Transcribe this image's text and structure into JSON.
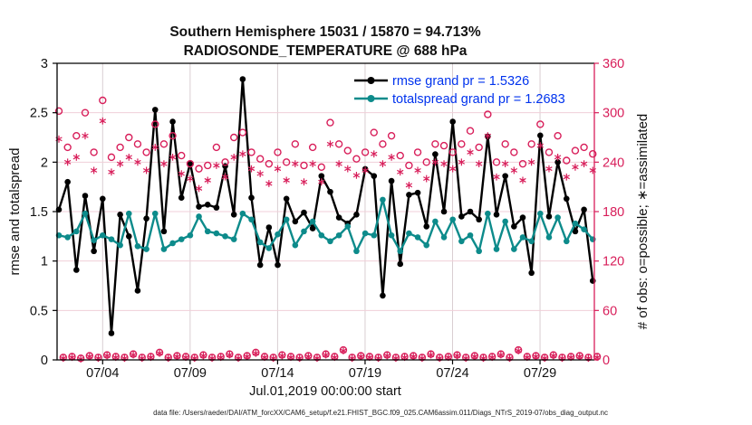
{
  "title": {
    "line1": "Southern Hemisphere 15031 / 15870 = 94.713%",
    "line2": "RADIOSONDE_TEMPERATURE @ 688 hPa"
  },
  "colors": {
    "obs_red": "#d81e5a",
    "rmse_black": "#000000",
    "spread_teal": "#0d8b8b",
    "legend_text_blue": "#0033ee",
    "grid_horizontal": "#f0cfd8",
    "grid_vertical": "#d9ced2",
    "axis_left": "#000000",
    "axis_right": "#d81e5a"
  },
  "chart_data": {
    "type": "line",
    "title": "Southern Hemisphere 15031 / 15870 = 94.713%",
    "subtitle": "RADIOSONDE_TEMPERATURE @ 688 hPa",
    "xlabel": "Jul.01,2019 00:00:00 start",
    "ylabel_left": "rmse and totalspread",
    "ylabel_right": "# of obs: o=possible; ∗=assimilated",
    "ylim_left": [
      0,
      3
    ],
    "yticks_left": [
      "0",
      "0.5",
      "1",
      "1.5",
      "2",
      "2.5",
      "3"
    ],
    "ylim_right": [
      0,
      360
    ],
    "yticks_right": [
      "0",
      "60",
      "120",
      "180",
      "240",
      "300",
      "360"
    ],
    "x_tick_labels": [
      "07/04",
      "07/09",
      "07/14",
      "07/19",
      "07/24",
      "07/29"
    ],
    "time_axis_note": "62 bins every 12 h, 2019-07-01 12:00Z through 2019-08-01 00:00Z; small off-hour bins fall between them",
    "grid": true,
    "legend_position": "upper-right-inside, no box",
    "legend": [
      {
        "label": "rmse grand pr = 1.5326",
        "color": "#000000"
      },
      {
        "label": "totalspread grand pr = 1.2683",
        "color": "#0d8b8b"
      }
    ],
    "series": [
      {
        "name": "rmse",
        "axis": "left",
        "style": "line-dot",
        "color": "#000000",
        "values": [
          1.52,
          1.8,
          0.91,
          1.66,
          1.1,
          1.63,
          0.27,
          1.47,
          1.25,
          0.7,
          1.43,
          2.53,
          1.3,
          2.41,
          1.64,
          1.99,
          1.55,
          1.57,
          1.54,
          1.96,
          1.47,
          2.84,
          1.64,
          0.96,
          1.34,
          0.96,
          1.63,
          1.4,
          1.49,
          1.33,
          1.86,
          1.7,
          1.44,
          1.38,
          1.47,
          1.93,
          1.86,
          0.65,
          1.81,
          0.97,
          1.67,
          1.69,
          1.35,
          2.08,
          1.5,
          2.41,
          1.45,
          1.5,
          1.42,
          2.26,
          1.47,
          1.86,
          1.35,
          1.44,
          0.88,
          2.27,
          1.45,
          2.0,
          1.63,
          1.3,
          1.52,
          0.8
        ]
      },
      {
        "name": "totalspread",
        "axis": "left",
        "style": "line-dot",
        "color": "#0d8b8b",
        "values": [
          1.26,
          1.24,
          1.3,
          1.48,
          1.21,
          1.26,
          1.22,
          1.16,
          1.48,
          1.15,
          1.12,
          1.48,
          1.12,
          1.18,
          1.22,
          1.26,
          1.45,
          1.3,
          1.28,
          1.25,
          1.22,
          1.48,
          1.42,
          1.19,
          1.13,
          1.27,
          1.42,
          1.16,
          1.3,
          1.4,
          1.26,
          1.2,
          1.26,
          1.35,
          1.1,
          1.28,
          1.26,
          1.62,
          1.26,
          1.1,
          1.28,
          1.24,
          1.16,
          1.4,
          1.24,
          1.42,
          1.2,
          1.26,
          1.1,
          1.48,
          1.12,
          1.4,
          1.12,
          1.24,
          1.2,
          1.48,
          1.24,
          1.44,
          1.2,
          1.38,
          1.32,
          1.22
        ]
      },
      {
        "name": "obs-possible",
        "axis": "right",
        "style": "open-circle",
        "color": "#d81e5a",
        "offset": 0,
        "values": [
          302,
          258,
          272,
          300,
          252,
          315,
          246,
          258,
          270,
          262,
          252,
          286,
          262,
          272,
          248,
          238,
          232,
          236,
          258,
          240,
          270,
          276,
          252,
          244,
          238,
          252,
          240,
          262,
          236,
          258,
          234,
          288,
          262,
          254,
          244,
          252,
          276,
          262,
          272,
          248,
          236,
          252,
          240,
          262,
          260,
          252,
          262,
          278,
          258,
          298,
          240,
          262,
          252,
          238,
          262,
          286,
          252,
          272,
          242,
          254,
          258,
          250
        ]
      },
      {
        "name": "obs-assimilated",
        "axis": "right",
        "style": "asterisk",
        "color": "#d81e5a",
        "offset": 0,
        "values": [
          268,
          240,
          246,
          272,
          230,
          290,
          228,
          238,
          246,
          240,
          230,
          258,
          238,
          246,
          226,
          220,
          208,
          218,
          236,
          222,
          246,
          250,
          232,
          226,
          214,
          232,
          218,
          238,
          216,
          238,
          216,
          262,
          238,
          232,
          224,
          230,
          250,
          238,
          246,
          228,
          212,
          230,
          220,
          240,
          238,
          232,
          240,
          252,
          238,
          272,
          222,
          238,
          230,
          218,
          240,
          260,
          232,
          246,
          222,
          234,
          238,
          230
        ]
      },
      {
        "name": "obs-possible-offhours",
        "axis": "right",
        "style": "open-circle",
        "color": "#d81e5a",
        "offset": 0.5,
        "values": [
          3,
          4,
          2,
          5,
          3,
          6,
          4,
          3,
          7,
          3,
          4,
          9,
          3,
          5,
          4,
          3,
          6,
          3,
          4,
          7,
          3,
          5,
          9,
          4,
          3,
          6,
          4,
          3,
          5,
          3,
          7,
          4,
          12,
          3,
          5,
          4,
          3,
          6,
          3,
          4,
          5,
          3,
          7,
          3,
          4,
          6,
          3,
          5,
          3,
          4,
          7,
          3,
          12,
          4,
          5,
          3,
          6,
          3,
          4,
          5,
          3,
          4
        ]
      },
      {
        "name": "obs-assimilated-offhours",
        "axis": "right",
        "style": "asterisk",
        "color": "#d81e5a",
        "offset": 0.5,
        "values": [
          2,
          3,
          1,
          4,
          2,
          5,
          3,
          2,
          6,
          2,
          3,
          8,
          2,
          4,
          3,
          2,
          5,
          2,
          3,
          6,
          2,
          4,
          8,
          3,
          2,
          5,
          3,
          2,
          4,
          2,
          6,
          3,
          11,
          2,
          4,
          3,
          2,
          5,
          2,
          3,
          4,
          2,
          6,
          2,
          3,
          5,
          2,
          4,
          2,
          3,
          6,
          2,
          11,
          3,
          4,
          2,
          5,
          2,
          3,
          4,
          2,
          3
        ]
      }
    ]
  },
  "footer": {
    "data_file": "data file: /Users/raeder/DAI/ATM_forcXX/CAM6_setup/f.e21.FHIST_BGC.f09_025.CAM6assim.011/Diags_NTrS_2019-07/obs_diag_output.nc"
  }
}
